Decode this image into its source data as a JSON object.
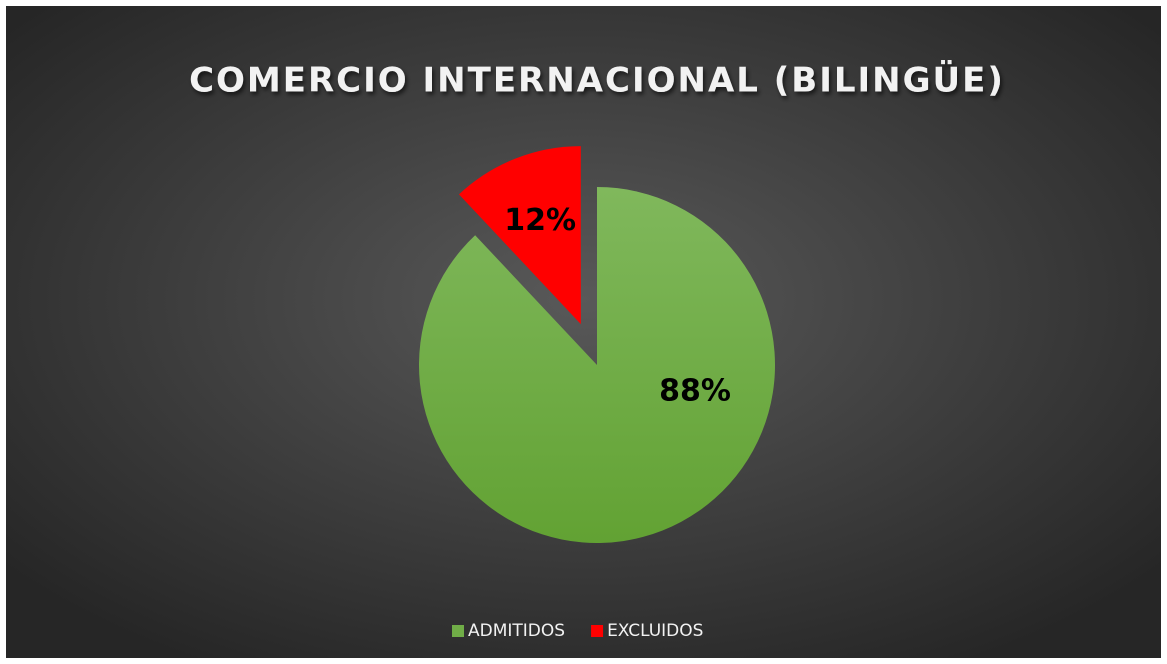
{
  "chart_data": {
    "type": "pie",
    "title": "COMERCIO INTERNACIONAL (BILINGÜE)",
    "categories": [
      "ADMITIDOS",
      "EXCLUIDOS"
    ],
    "values": [
      88,
      12
    ],
    "value_labels": [
      "88%",
      "12%"
    ],
    "colors": [
      "#70ad47",
      "#ff0000"
    ],
    "legend": "bottom"
  }
}
